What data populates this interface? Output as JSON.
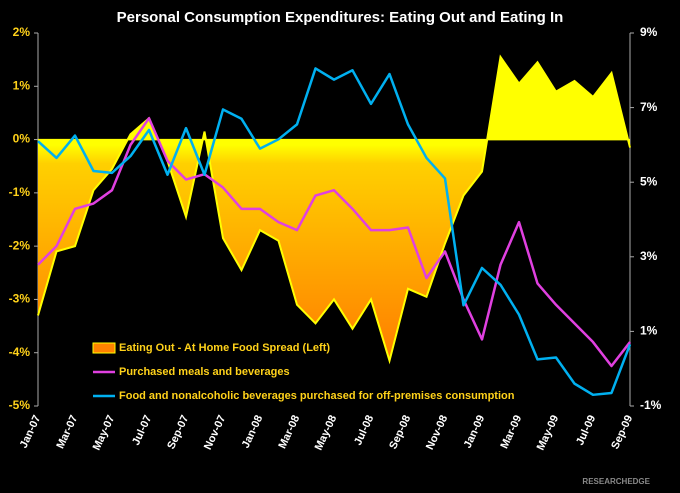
{
  "chart_data": {
    "type": "area-line",
    "title": "Personal Consumption Expenditures: Eating Out and Eating In",
    "watermark": "RESEARCHEDGE",
    "categories": [
      "Jan-07",
      null,
      "Mar-07",
      null,
      "May-07",
      null,
      "Jul-07",
      null,
      "Sep-07",
      null,
      "Nov-07",
      null,
      "Jan-08",
      null,
      "Mar-08",
      null,
      "May-08",
      null,
      "Jul-08",
      null,
      "Sep-08",
      null,
      "Nov-08",
      null,
      "Jan-09",
      null,
      "Mar-09",
      null,
      "May-09",
      null,
      "Jul-09",
      null,
      "Sep-09"
    ],
    "ylim": [
      -5,
      2
    ],
    "yticks": [
      {
        "value": -5,
        "label": "-5%"
      },
      {
        "value": -4,
        "label": "-4%"
      },
      {
        "value": -3,
        "label": "-3%"
      },
      {
        "value": -2,
        "label": "-2%"
      },
      {
        "value": -1,
        "label": "-1%"
      },
      {
        "value": 0,
        "label": "0%"
      },
      {
        "value": 1,
        "label": "1%"
      },
      {
        "value": 2,
        "label": "2%"
      }
    ],
    "y2lim": [
      -1,
      9
    ],
    "y2ticks": [
      {
        "value": -1,
        "label": "-1%"
      },
      {
        "value": 1,
        "label": "1%"
      },
      {
        "value": 3,
        "label": "3%"
      },
      {
        "value": 5,
        "label": "5%"
      },
      {
        "value": 7,
        "label": "7%"
      },
      {
        "value": 9,
        "label": "9%"
      }
    ],
    "legend": "lower left",
    "series": [
      {
        "name": "Eating Out - At Home Food Spread (Left)",
        "kind": "area",
        "color": "#ffff00",
        "values": [
          -3.3,
          -2.1,
          -2.0,
          -0.95,
          -0.55,
          0.1,
          0.4,
          -0.4,
          -1.45,
          0.15,
          -1.85,
          -2.45,
          -1.7,
          -1.9,
          -3.1,
          -3.45,
          -3.0,
          -3.55,
          -3.0,
          -4.15,
          -2.8,
          -2.95,
          -1.95,
          -1.05,
          -0.6,
          1.55,
          1.05,
          1.45,
          0.9,
          1.1,
          0.8,
          1.25,
          -0.15
        ]
      },
      {
        "name": "Purchased meals and beverages",
        "kind": "line",
        "color": "#e040e0",
        "values": [
          -2.35,
          -2.0,
          -1.3,
          -1.2,
          -0.95,
          -0.1,
          0.4,
          -0.4,
          -0.75,
          -0.65,
          -0.9,
          -1.3,
          -1.3,
          -1.55,
          -1.7,
          -1.05,
          -0.95,
          -1.3,
          -1.7,
          -1.7,
          -1.65,
          -2.6,
          -2.1,
          -3.0,
          -3.75,
          -2.35,
          -1.55,
          -2.7,
          -3.1,
          -3.45,
          -3.8,
          -4.25,
          -3.8
        ]
      },
      {
        "name": "Food and nonalcoholic beverages purchased for off-premises consumption",
        "kind": "line",
        "axis": "y2",
        "color": "#00b0f0",
        "values": [
          6.1,
          5.65,
          6.25,
          5.3,
          5.25,
          5.7,
          6.4,
          5.2,
          6.45,
          5.2,
          6.95,
          6.7,
          5.9,
          6.15,
          6.55,
          8.05,
          7.75,
          8.0,
          7.1,
          7.9,
          6.55,
          5.65,
          5.1,
          1.7,
          2.7,
          2.25,
          1.45,
          0.25,
          0.3,
          -0.4,
          -0.7,
          -0.65,
          0.65
        ]
      }
    ]
  }
}
